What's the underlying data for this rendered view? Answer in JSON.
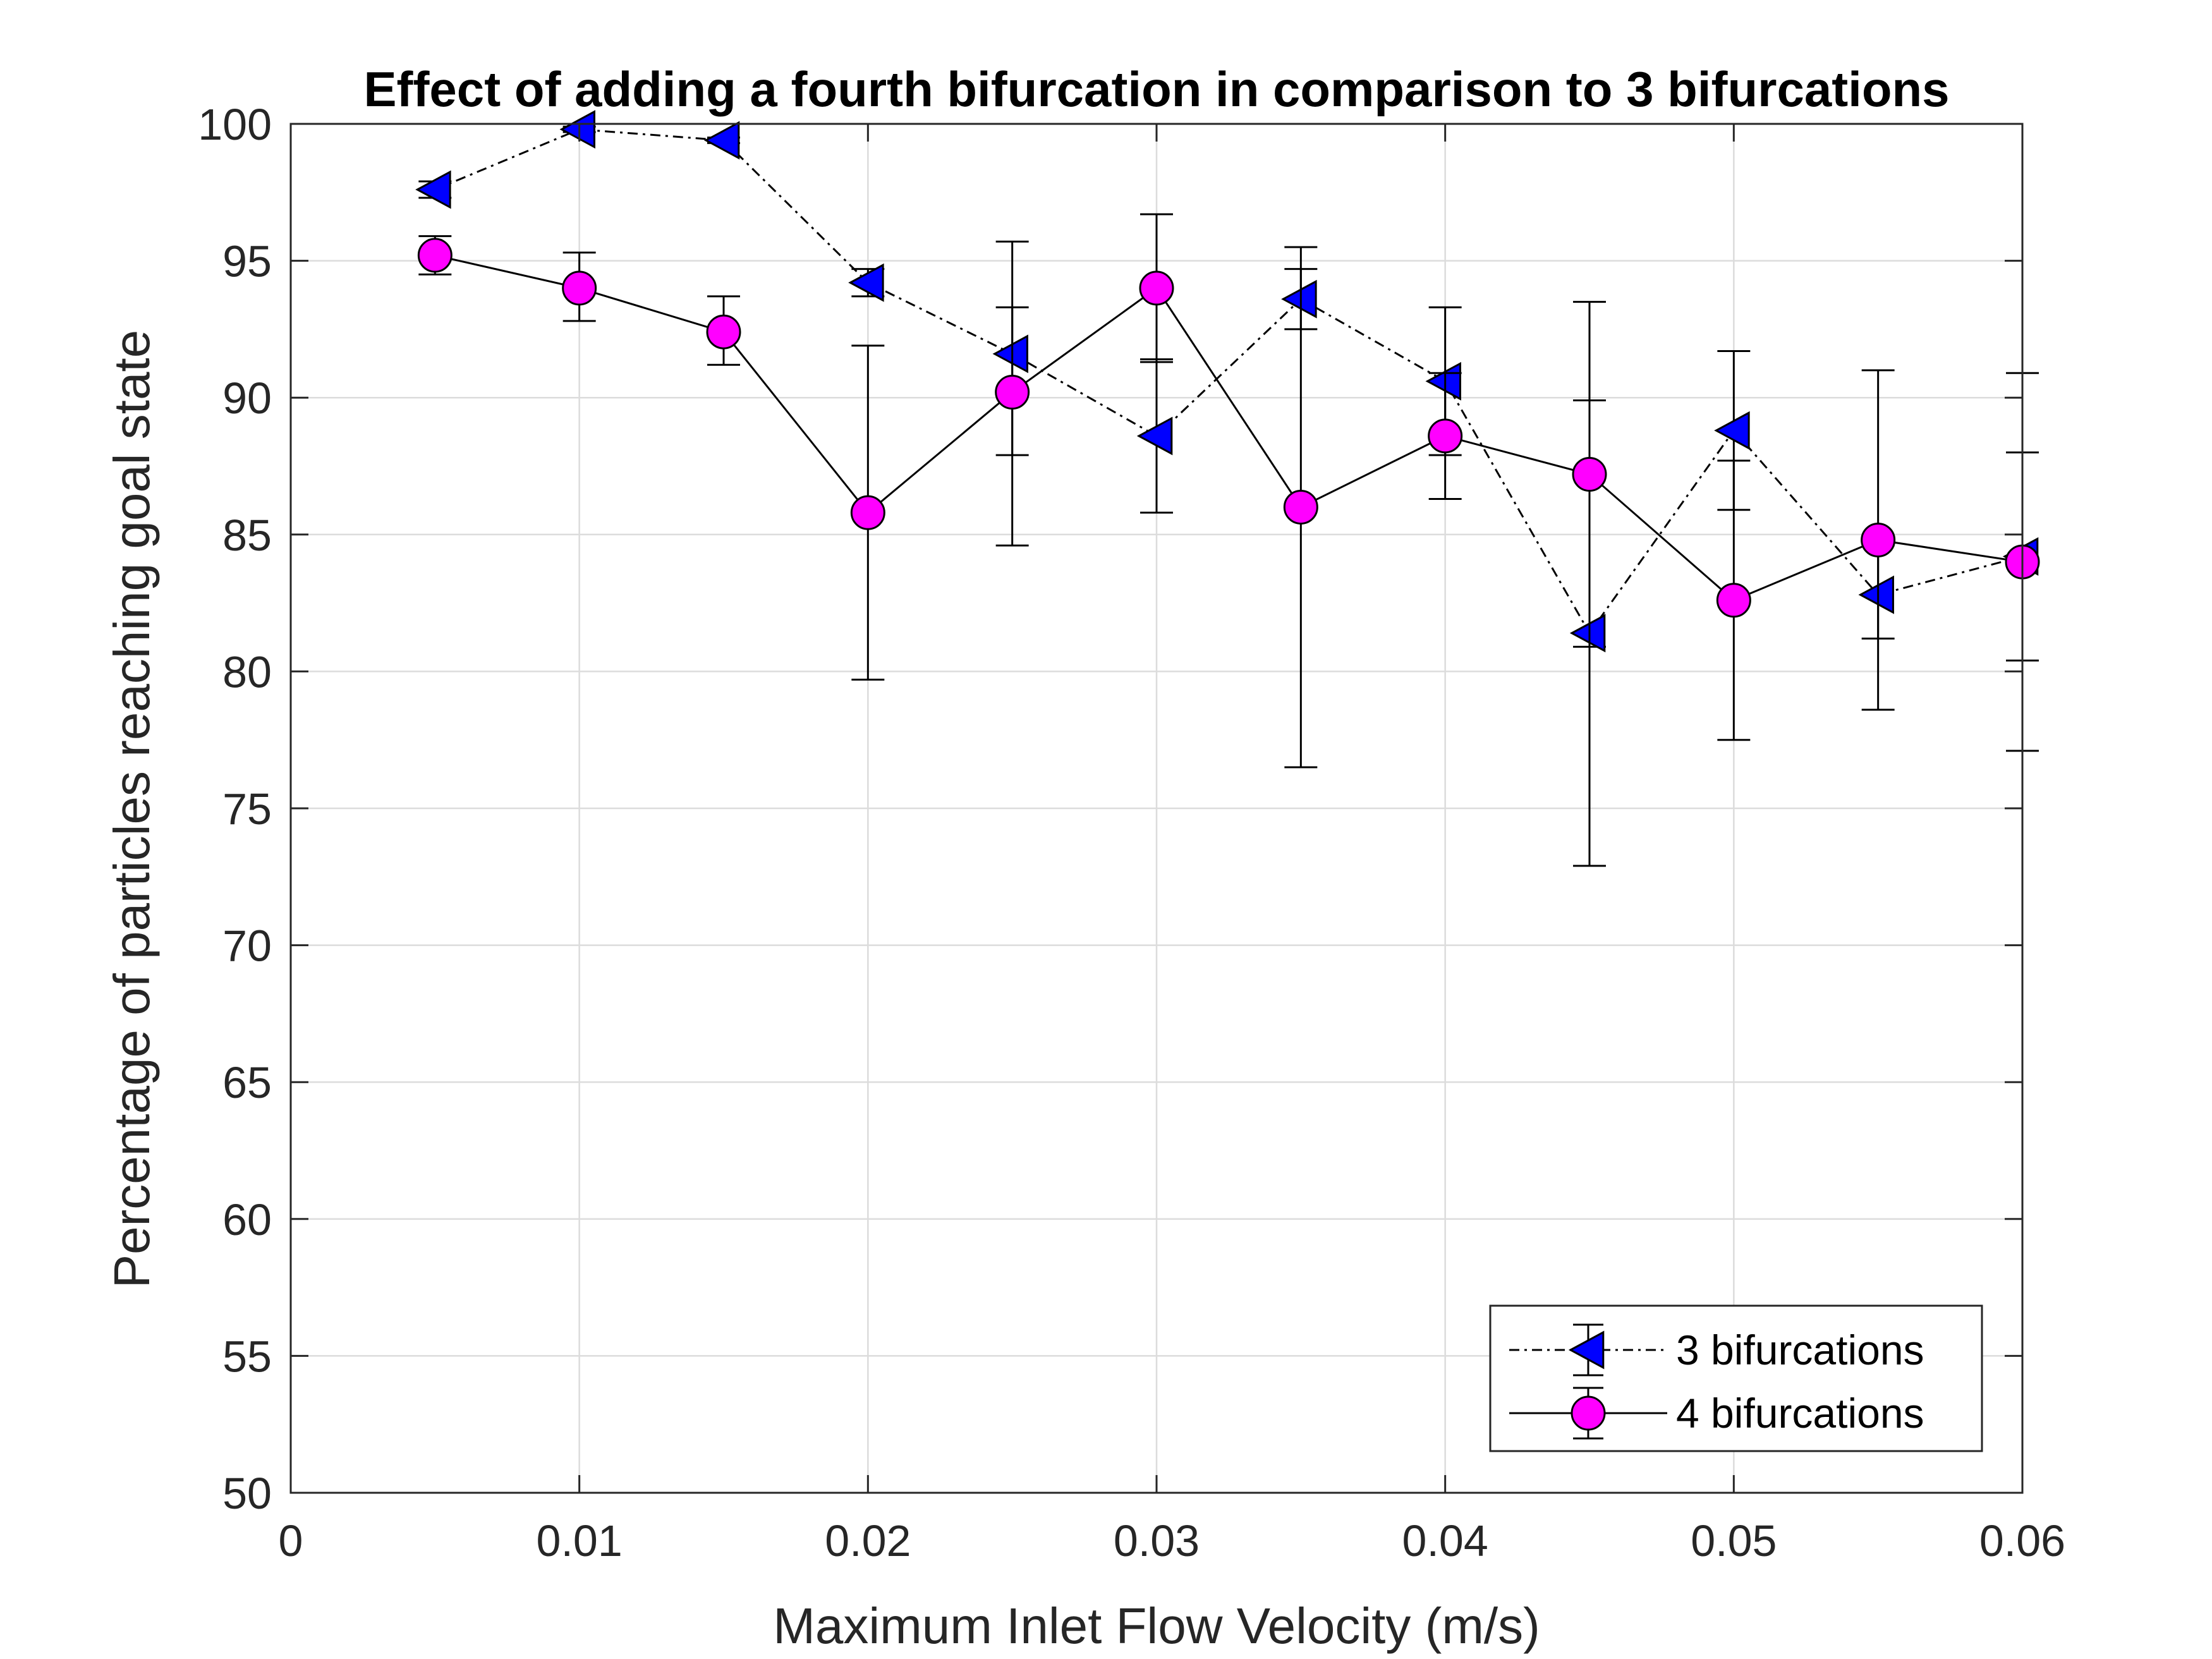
{
  "chart_data": {
    "type": "line",
    "title": "Effect of adding a fourth bifurcation in comparison to 3 bifurcations",
    "xlabel": "Maximum Inlet Flow Velocity (m/s)",
    "ylabel": "Percentage of particles reaching goal state",
    "xlim": [
      0,
      0.06
    ],
    "ylim": [
      50,
      100
    ],
    "xticks": [
      "0",
      "0.01",
      "0.02",
      "0.03",
      "0.04",
      "0.05",
      "0.06"
    ],
    "yticks": [
      "50",
      "55",
      "60",
      "65",
      "70",
      "75",
      "80",
      "85",
      "90",
      "95",
      "100"
    ],
    "grid": true,
    "legend_position": "bottom-right",
    "series": [
      {
        "name": "3 bifurcations",
        "marker": "triangle-left",
        "line_style": "dash-dot",
        "marker_color": "#0000ff",
        "x": [
          0.005,
          0.01,
          0.015,
          0.02,
          0.025,
          0.03,
          0.035,
          0.04,
          0.045,
          0.05,
          0.055,
          0.06
        ],
        "y": [
          97.6,
          99.8,
          99.4,
          94.2,
          91.6,
          88.6,
          93.6,
          90.6,
          81.4,
          88.8,
          82.8,
          84.2
        ],
        "err_low": [
          97.3,
          99.7,
          99.3,
          93.7,
          87.9,
          85.8,
          92.5,
          87.9,
          80.9,
          85.9,
          78.6,
          80.4
        ],
        "err_high": [
          97.9,
          99.9,
          99.5,
          94.7,
          95.7,
          91.4,
          94.7,
          93.3,
          89.9,
          91.7,
          84.6,
          88.0
        ]
      },
      {
        "name": "4 bifurcations",
        "marker": "circle",
        "line_style": "solid",
        "marker_color": "#ff00ff",
        "x": [
          0.005,
          0.01,
          0.015,
          0.02,
          0.025,
          0.03,
          0.035,
          0.04,
          0.045,
          0.05,
          0.055,
          0.06
        ],
        "y": [
          95.2,
          94.0,
          92.4,
          85.8,
          90.2,
          94.0,
          86.0,
          88.6,
          87.2,
          82.6,
          84.8,
          84.0
        ],
        "err_low": [
          94.5,
          92.8,
          91.2,
          79.7,
          84.6,
          91.3,
          76.5,
          86.3,
          72.9,
          77.5,
          81.2,
          77.1
        ],
        "err_high": [
          95.9,
          95.3,
          93.7,
          91.9,
          93.3,
          96.7,
          95.5,
          90.9,
          93.5,
          87.7,
          91.0,
          90.9
        ]
      }
    ]
  }
}
